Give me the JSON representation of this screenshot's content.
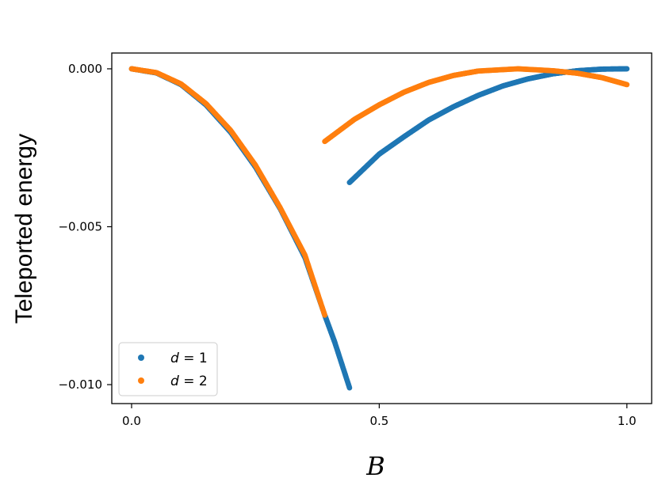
{
  "chart_data": {
    "type": "scatter",
    "title": "",
    "xlabel": "B",
    "ylabel": "Teleported energy",
    "xlim": [
      -0.04,
      1.05
    ],
    "ylim": [
      -0.0106,
      0.0005
    ],
    "xticks": [
      {
        "value": 0.0,
        "label": "0.0"
      },
      {
        "value": 0.5,
        "label": "0.5"
      },
      {
        "value": 1.0,
        "label": "1.0"
      }
    ],
    "yticks": [
      {
        "value": 0.0,
        "label": "0.000"
      },
      {
        "value": -0.005,
        "label": "−0.005"
      },
      {
        "value": -0.01,
        "label": "−0.010"
      }
    ],
    "grid": false,
    "legend_position": "lower-left",
    "series": [
      {
        "name": "d = 1",
        "name_parts": [
          "d",
          " = 1"
        ],
        "color": "#1f77b4",
        "segments": [
          [
            [
              0.0,
              0.0
            ],
            [
              0.05,
              -0.00013
            ],
            [
              0.1,
              -0.0005
            ],
            [
              0.15,
              -0.00114
            ],
            [
              0.2,
              -0.00201
            ],
            [
              0.25,
              -0.00311
            ],
            [
              0.3,
              -0.00443
            ],
            [
              0.35,
              -0.00598
            ],
            [
              0.39,
              -0.0078
            ],
            [
              0.41,
              -0.00865
            ],
            [
              0.44,
              -0.0101
            ]
          ],
          [
            [
              0.44,
              -0.0036
            ],
            [
              0.5,
              -0.0027
            ],
            [
              0.55,
              -0.00215
            ],
            [
              0.6,
              -0.00162
            ],
            [
              0.65,
              -0.0012
            ],
            [
              0.7,
              -0.00084
            ],
            [
              0.75,
              -0.00054
            ],
            [
              0.8,
              -0.00032
            ],
            [
              0.85,
              -0.00016
            ],
            [
              0.9,
              -6e-05
            ],
            [
              0.95,
              -1e-05
            ],
            [
              1.0,
              0.0
            ]
          ]
        ]
      },
      {
        "name": "d = 2",
        "name_parts": [
          "d",
          " = 2"
        ],
        "color": "#ff7f0e",
        "segments": [
          [
            [
              0.0,
              0.0
            ],
            [
              0.05,
              -0.00012
            ],
            [
              0.1,
              -0.00048
            ],
            [
              0.15,
              -0.0011
            ],
            [
              0.2,
              -0.00195
            ],
            [
              0.25,
              -0.00305
            ],
            [
              0.3,
              -0.0044
            ],
            [
              0.35,
              -0.0059
            ],
            [
              0.39,
              -0.0078
            ]
          ],
          [
            [
              0.39,
              -0.0023
            ],
            [
              0.45,
              -0.0016
            ],
            [
              0.5,
              -0.00114
            ],
            [
              0.55,
              -0.00074
            ],
            [
              0.6,
              -0.00043
            ],
            [
              0.65,
              -0.00021
            ],
            [
              0.7,
              -7e-05
            ],
            [
              0.78,
              0.0
            ],
            [
              0.85,
              -6e-05
            ],
            [
              0.9,
              -0.00014
            ],
            [
              0.95,
              -0.00028
            ],
            [
              1.0,
              -0.0005
            ]
          ]
        ]
      }
    ]
  }
}
